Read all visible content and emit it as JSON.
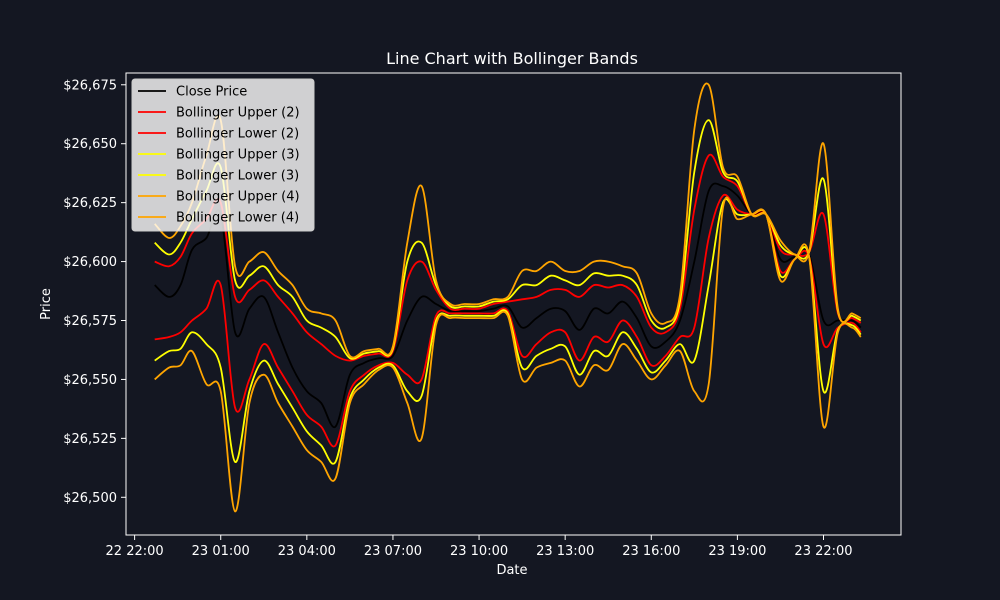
{
  "chart_data": {
    "type": "line",
    "title": "Line Chart with Bollinger Bands",
    "xlabel": "Date",
    "ylabel": "Price",
    "x_ticks": [
      {
        "label": "22 22:00",
        "hour": 22
      },
      {
        "label": "23 01:00",
        "hour": 25
      },
      {
        "label": "23 04:00",
        "hour": 28
      },
      {
        "label": "23 07:00",
        "hour": 31
      },
      {
        "label": "23 10:00",
        "hour": 34
      },
      {
        "label": "23 13:00",
        "hour": 37
      },
      {
        "label": "23 16:00",
        "hour": 40
      },
      {
        "label": "23 19:00",
        "hour": 43
      },
      {
        "label": "23 22:00",
        "hour": 46
      }
    ],
    "y_ticks": [
      {
        "label": "$26,500",
        "value": 26500
      },
      {
        "label": "$26,525",
        "value": 26525
      },
      {
        "label": "$26,550",
        "value": 26550
      },
      {
        "label": "$26,575",
        "value": 26575
      },
      {
        "label": "$26,600",
        "value": 26600
      },
      {
        "label": "$26,625",
        "value": 26625
      },
      {
        "label": "$26,650",
        "value": 26650
      },
      {
        "label": "$26,675",
        "value": 26675
      }
    ],
    "xlim": [
      21.7,
      48.7
    ],
    "ylim": [
      26484,
      26680
    ],
    "grid": false,
    "legend_position": "top-left",
    "legend": [
      {
        "label": "Close Price",
        "color": "#000000"
      },
      {
        "label": "Bollinger Upper (2)",
        "color": "#ff0000"
      },
      {
        "label": "Bollinger Lower (2)",
        "color": "#ff0000"
      },
      {
        "label": "Bollinger Upper (3)",
        "color": "#ffff00"
      },
      {
        "label": "Bollinger Lower (3)",
        "color": "#ffff00"
      },
      {
        "label": "Bollinger Upper (4)",
        "color": "#ffa500"
      },
      {
        "label": "Bollinger Lower (4)",
        "color": "#ffa500"
      }
    ],
    "x": [
      22.7,
      23.2,
      23.6,
      24.0,
      24.5,
      25.0,
      25.5,
      26.0,
      26.5,
      27.0,
      27.5,
      28.0,
      28.5,
      29.0,
      29.5,
      30.0,
      30.5,
      31.0,
      31.5,
      32.0,
      32.5,
      33.0,
      33.5,
      34.0,
      34.5,
      35.0,
      35.5,
      36.0,
      36.5,
      37.0,
      37.5,
      38.0,
      38.5,
      39.0,
      39.5,
      40.0,
      40.5,
      41.0,
      41.5,
      42.0,
      42.5,
      43.0,
      43.5,
      44.0,
      44.5,
      45.0,
      45.5,
      46.0,
      46.5,
      47.0,
      47.3
    ],
    "series": [
      {
        "name": "Close Price",
        "color": "#000000",
        "width": 1.8,
        "values": [
          26590,
          26585,
          26590,
          26605,
          26610,
          26620,
          26570,
          26580,
          26585,
          26570,
          26555,
          26545,
          26540,
          26530,
          26552,
          26557,
          26559,
          26560,
          26575,
          26585,
          26582,
          26579,
          26579,
          26579,
          26580,
          26581,
          26572,
          26576,
          26580,
          26579,
          26571,
          26580,
          26578,
          26583,
          26576,
          26564,
          26566,
          26575,
          26600,
          26630,
          26632,
          26628,
          26620,
          26620,
          26601,
          26602,
          26603,
          26575,
          26575,
          26575,
          26572
        ]
      },
      {
        "name": "Bollinger Upper (2)",
        "color": "#ff0000",
        "width": 1.8,
        "values": [
          26600,
          26598,
          26602,
          26612,
          26618,
          26625,
          26585,
          26588,
          26592,
          26585,
          26578,
          26570,
          26565,
          26560,
          26558,
          26560,
          26561,
          26562,
          26592,
          26600,
          26588,
          26580,
          26580,
          26580,
          26582,
          26583,
          26584,
          26585,
          26588,
          26588,
          26585,
          26590,
          26589,
          26590,
          26585,
          26572,
          26570,
          26580,
          26622,
          26645,
          26636,
          26632,
          26620,
          26620,
          26605,
          26603,
          26604,
          26620,
          26578,
          26576,
          26574
        ]
      },
      {
        "name": "Bollinger Lower (2)",
        "color": "#ff0000",
        "width": 1.8,
        "values": [
          26567,
          26568,
          26570,
          26575,
          26580,
          26590,
          26538,
          26550,
          26565,
          26555,
          26545,
          26535,
          26530,
          26522,
          26545,
          26552,
          26556,
          26557,
          26552,
          26550,
          26577,
          26578,
          26578,
          26578,
          26578,
          26579,
          26560,
          26565,
          26570,
          26570,
          26558,
          26568,
          26566,
          26575,
          26568,
          26556,
          26560,
          26568,
          26572,
          26610,
          26628,
          26622,
          26620,
          26620,
          26596,
          26601,
          26602,
          26565,
          26572,
          26574,
          26570
        ]
      },
      {
        "name": "Bollinger Upper (3)",
        "color": "#ffff00",
        "width": 1.8,
        "values": [
          26608,
          26603,
          26608,
          26618,
          26630,
          26640,
          26592,
          26594,
          26598,
          26590,
          26585,
          26575,
          26572,
          26568,
          26559,
          26561,
          26562,
          26563,
          26600,
          26608,
          26590,
          26581,
          26581,
          26581,
          26583,
          26584,
          26590,
          26590,
          26594,
          26592,
          26590,
          26595,
          26594,
          26594,
          26590,
          26575,
          26572,
          26583,
          26638,
          26660,
          26638,
          26634,
          26620,
          26620,
          26607,
          26603,
          26604,
          26635,
          26579,
          26577,
          26575
        ]
      },
      {
        "name": "Bollinger Lower (3)",
        "color": "#ffff00",
        "width": 1.8,
        "values": [
          26558,
          26562,
          26563,
          26570,
          26565,
          26555,
          26515,
          26545,
          26558,
          26548,
          26538,
          26528,
          26522,
          26515,
          26542,
          26550,
          26555,
          26556,
          26545,
          26543,
          26575,
          26577,
          26577,
          26577,
          26577,
          26578,
          26555,
          26560,
          26563,
          26564,
          26552,
          26562,
          26560,
          26570,
          26563,
          26553,
          26558,
          26565,
          26558,
          26590,
          26625,
          26620,
          26620,
          26620,
          26594,
          26601,
          26602,
          26545,
          26571,
          26573,
          26569
        ]
      },
      {
        "name": "Bollinger Upper (4)",
        "color": "#ffa500",
        "width": 1.8,
        "values": [
          26616,
          26610,
          26615,
          26625,
          26645,
          26660,
          26598,
          26600,
          26604,
          26596,
          26590,
          26580,
          26578,
          26575,
          26560,
          26562,
          26563,
          26564,
          26608,
          26632,
          26592,
          26582,
          26582,
          26582,
          26584,
          26585,
          26596,
          26596,
          26600,
          26596,
          26596,
          26600,
          26600,
          26598,
          26595,
          26578,
          26574,
          26586,
          26656,
          26675,
          26640,
          26636,
          26620,
          26620,
          26609,
          26603,
          26604,
          26650,
          26580,
          26578,
          26576
        ]
      },
      {
        "name": "Bollinger Lower (4)",
        "color": "#ffa500",
        "width": 1.8,
        "values": [
          26550,
          26555,
          26556,
          26562,
          26548,
          26545,
          26494,
          26540,
          26552,
          26540,
          26530,
          26520,
          26515,
          26508,
          26540,
          26548,
          26554,
          26555,
          26540,
          26525,
          26573,
          26576,
          26576,
          26576,
          26576,
          26577,
          26550,
          26555,
          26557,
          26558,
          26547,
          26556,
          26554,
          26565,
          26558,
          26550,
          26556,
          26562,
          26545,
          26548,
          26623,
          26618,
          26620,
          26620,
          26592,
          26601,
          26602,
          26530,
          26570,
          26572,
          26568
        ]
      }
    ]
  }
}
